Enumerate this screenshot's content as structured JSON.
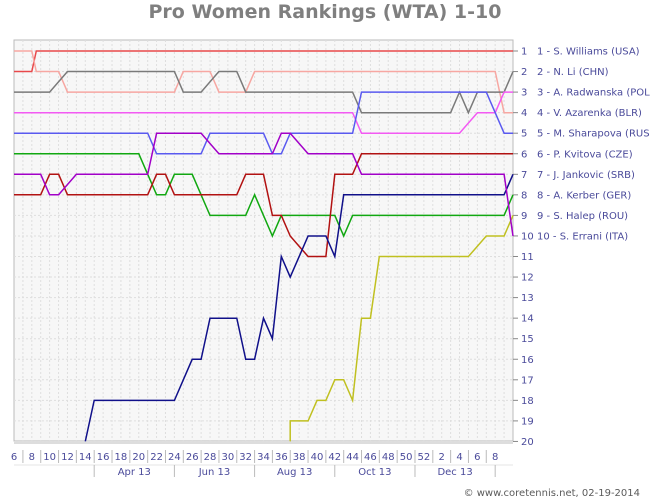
{
  "chart_data": {
    "type": "line",
    "title": "Pro Women Rankings (WTA) 1-10",
    "x_ticks": [
      "6",
      "8",
      "10",
      "12",
      "14",
      "16",
      "18",
      "20",
      "22",
      "24",
      "26",
      "28",
      "30",
      "32",
      "34",
      "36",
      "38",
      "40",
      "42",
      "44",
      "46",
      "48",
      "50",
      "52",
      "2",
      "4",
      "6",
      "8"
    ],
    "month_labels": [
      "Apr 13",
      "Jun 13",
      "Aug 13",
      "Oct 13",
      "Dec 13"
    ],
    "y_ticks": [
      "1",
      "2",
      "3",
      "4",
      "5",
      "6",
      "7",
      "8",
      "9",
      "10",
      "11",
      "12",
      "13",
      "14",
      "15",
      "16",
      "17",
      "18",
      "19",
      "20"
    ],
    "ylim": [
      20,
      1
    ],
    "grid": true,
    "labels_right": [
      "1 - S. Williams (USA)",
      "2 - N. Li (CHN)",
      "3 - A. Radwanska (POL)",
      "4 - V. Azarenka (BLR)",
      "5 - M. Sharapova (RUS)",
      "6 - P. Kvitova (CZE)",
      "7 - J. Jankovic (SRB)",
      "8 - A. Kerber (GER)",
      "9 - S. Halep (ROU)",
      "10 - S. Errani (ITA)"
    ],
    "series": [
      {
        "name": "1 - S. Williams (USA)",
        "color": "#e8484a",
        "points": [
          [
            0,
            2
          ],
          [
            2,
            2
          ],
          [
            2.5,
            1
          ],
          [
            56,
            1
          ]
        ]
      },
      {
        "name": "2 - N. Li (CHN)",
        "color": "#f7a7a2",
        "points": [
          [
            0,
            1
          ],
          [
            2,
            1
          ],
          [
            2.5,
            2
          ],
          [
            5,
            2
          ],
          [
            6,
            3
          ],
          [
            18,
            3
          ],
          [
            19,
            2
          ],
          [
            22,
            2
          ],
          [
            23,
            3
          ],
          [
            26,
            3
          ],
          [
            27,
            2
          ],
          [
            54,
            2
          ],
          [
            55,
            4
          ],
          [
            56,
            4
          ]
        ]
      },
      {
        "name": "3 - A. Radwanska (POL)",
        "color": "#7a7a7a",
        "points": [
          [
            0,
            3
          ],
          [
            4,
            3
          ],
          [
            6,
            2
          ],
          [
            18,
            2
          ],
          [
            19,
            3
          ],
          [
            21,
            3
          ],
          [
            23,
            2
          ],
          [
            25,
            2
          ],
          [
            26,
            3
          ],
          [
            38,
            3
          ],
          [
            39,
            4
          ],
          [
            49,
            4
          ],
          [
            50,
            3
          ],
          [
            51,
            4
          ],
          [
            52,
            3
          ],
          [
            55,
            3
          ],
          [
            56,
            2
          ]
        ]
      },
      {
        "name": "4 - V. Azarenka (BLR)",
        "color": "#f35af3",
        "points": [
          [
            0,
            4
          ],
          [
            38,
            4
          ],
          [
            39,
            5
          ],
          [
            50,
            5
          ],
          [
            52,
            4
          ],
          [
            54,
            4
          ],
          [
            55,
            3
          ],
          [
            56,
            3
          ]
        ]
      },
      {
        "name": "5 - M. Sharapova (RUS)",
        "color": "#5a5af0",
        "points": [
          [
            0,
            5
          ],
          [
            15,
            5
          ],
          [
            16,
            6
          ],
          [
            21,
            6
          ],
          [
            22,
            5
          ],
          [
            28,
            5
          ],
          [
            29,
            6
          ],
          [
            30,
            6
          ],
          [
            31,
            5
          ],
          [
            38,
            5
          ],
          [
            39,
            3
          ],
          [
            53,
            3
          ],
          [
            54,
            4
          ],
          [
            55,
            5
          ],
          [
            56,
            5
          ]
        ]
      },
      {
        "name": "6 - P. Kvitova (CZE)",
        "color": "#11a811",
        "points": [
          [
            0,
            6
          ],
          [
            14,
            6
          ],
          [
            15,
            7
          ],
          [
            16,
            8
          ],
          [
            17,
            8
          ],
          [
            18,
            7
          ],
          [
            20,
            7
          ],
          [
            22,
            9
          ],
          [
            26,
            9
          ],
          [
            27,
            8
          ],
          [
            28,
            9
          ],
          [
            29,
            10
          ],
          [
            30,
            9
          ],
          [
            36,
            9
          ],
          [
            37,
            10
          ],
          [
            38,
            9
          ],
          [
            55,
            9
          ],
          [
            56,
            8
          ]
        ]
      },
      {
        "name": "7 - J. Jankovic (SRB)",
        "color": "#b21212",
        "points": [
          [
            0,
            8
          ],
          [
            3,
            8
          ],
          [
            4,
            7
          ],
          [
            5,
            7
          ],
          [
            6,
            8
          ],
          [
            15,
            8
          ],
          [
            16,
            7
          ],
          [
            17,
            7
          ],
          [
            18,
            8
          ],
          [
            25,
            8
          ],
          [
            26,
            7
          ],
          [
            28,
            7
          ],
          [
            29,
            9
          ],
          [
            30,
            9
          ],
          [
            31,
            10
          ],
          [
            32,
            10.5
          ],
          [
            33,
            11
          ],
          [
            35,
            11
          ],
          [
            36,
            7
          ],
          [
            38,
            7
          ],
          [
            39,
            6
          ],
          [
            56,
            6
          ]
        ]
      },
      {
        "name": "8 - A. Kerber (GER)",
        "color": "#10108a",
        "points": [
          [
            8,
            20
          ],
          [
            9,
            18
          ],
          [
            18,
            18
          ],
          [
            20,
            16
          ],
          [
            21,
            16
          ],
          [
            22,
            14
          ],
          [
            25,
            14
          ],
          [
            26,
            16
          ],
          [
            27,
            16
          ],
          [
            28,
            14
          ],
          [
            29,
            15
          ],
          [
            30,
            11
          ],
          [
            31,
            12
          ],
          [
            33,
            10
          ],
          [
            35,
            10
          ],
          [
            36,
            11
          ],
          [
            37,
            8
          ],
          [
            55,
            8
          ],
          [
            56,
            7
          ]
        ]
      },
      {
        "name": "9 - S. Halep (ROU)",
        "color": "#c0c020",
        "points": [
          [
            31,
            20
          ],
          [
            31,
            19
          ],
          [
            33,
            19
          ],
          [
            34,
            18
          ],
          [
            35,
            18
          ],
          [
            36,
            17
          ],
          [
            37,
            17
          ],
          [
            38,
            18
          ],
          [
            39,
            14
          ],
          [
            40,
            14
          ],
          [
            41,
            11
          ],
          [
            51,
            11
          ],
          [
            52,
            10.5
          ],
          [
            53,
            10
          ],
          [
            55,
            10
          ],
          [
            56,
            9
          ]
        ]
      },
      {
        "name": "10 - S. Errani (ITA)",
        "color": "#a200c8",
        "points": [
          [
            0,
            7
          ],
          [
            3,
            7
          ],
          [
            4,
            8
          ],
          [
            5,
            8
          ],
          [
            7,
            7
          ],
          [
            15,
            7
          ],
          [
            16,
            5
          ],
          [
            21,
            5
          ],
          [
            23,
            6
          ],
          [
            29,
            6
          ],
          [
            30,
            5
          ],
          [
            31,
            5
          ],
          [
            33,
            6
          ],
          [
            38,
            6
          ],
          [
            39,
            7
          ],
          [
            55,
            7
          ],
          [
            56,
            10
          ]
        ]
      }
    ],
    "credit": "© www.coretennis.net, 02-19-2014"
  }
}
